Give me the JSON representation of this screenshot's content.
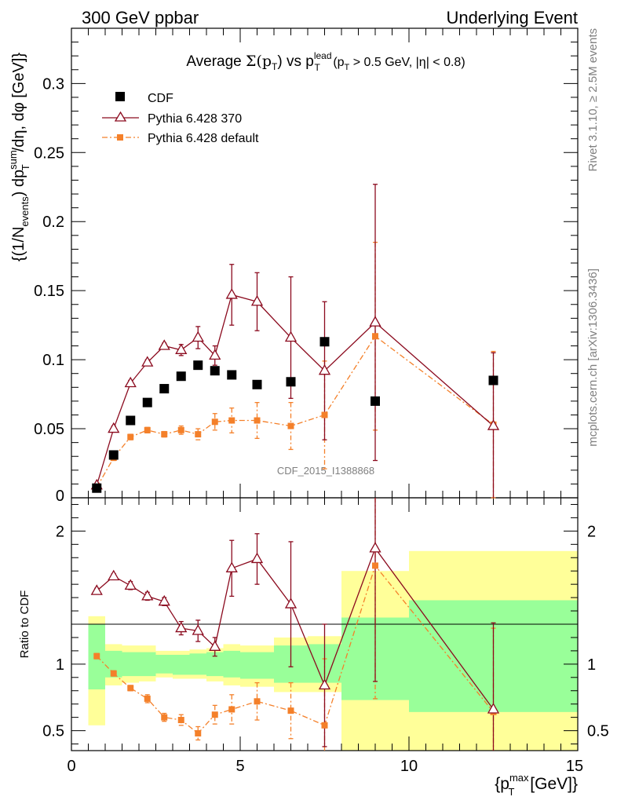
{
  "header": {
    "left": "300 GeV ppbar",
    "right": "Underlying Event"
  },
  "side": {
    "rivet": "Rivet 3.1.10, ≥ 2.5M events",
    "mcplots": "mcplots.cern.ch [arXiv:1306.3436]"
  },
  "watermark": "CDF_2015_I1388868",
  "title": {
    "prefix": "Average ",
    "sigma": "Σ(p",
    "sub1": "T",
    "mid": ") vs p",
    "sup": "lead",
    "sub2": "T",
    "suffix": " (p",
    "sub3": "T",
    "tail": " > 0.5 GeV, |η| < 0.8)"
  },
  "ylabel_main": {
    "a": "{(1/N",
    "sub_events": "events",
    "b": ") dp",
    "sup_sum": "sum",
    "sub_T": "T",
    "c": "/dη, dφ [GeV]}"
  },
  "ylabel_ratio": "Ratio to CDF",
  "xlabel": {
    "a": "{p",
    "sup": "max",
    "sub": "T",
    "b": " [GeV]}"
  },
  "colors": {
    "cdf": "#000000",
    "p370": "#8b0a1e",
    "pdef": "#f4802a",
    "band_yellow": "#ffff99",
    "band_green": "#99ff99"
  },
  "chart_data": {
    "type": "scatter",
    "xlim": [
      0,
      15
    ],
    "ylim": [
      0,
      0.34
    ],
    "ratio_ylim": [
      0.35,
      2.25
    ],
    "x_ticks": [
      "0",
      "5",
      "10",
      "15"
    ],
    "y_ticks": [
      "0",
      "0.05",
      "0.1",
      "0.15",
      "0.2",
      "0.25",
      "0.3"
    ],
    "ratio_ticks": [
      "0.5",
      "1",
      "2"
    ],
    "legend": [
      "CDF",
      "Pythia 6.428 370",
      "Pythia 6.428 default"
    ],
    "bins": [
      [
        0.5,
        1
      ],
      [
        1,
        1.5
      ],
      [
        1.5,
        2
      ],
      [
        2,
        2.5
      ],
      [
        2.5,
        3
      ],
      [
        3,
        3.5
      ],
      [
        3.5,
        4
      ],
      [
        4,
        4.5
      ],
      [
        4.5,
        5
      ],
      [
        5,
        6
      ],
      [
        6,
        7
      ],
      [
        7,
        8
      ],
      [
        8,
        10
      ],
      [
        10,
        15
      ]
    ],
    "x": [
      0.75,
      1.25,
      1.75,
      2.25,
      2.75,
      3.25,
      3.75,
      4.25,
      4.75,
      5.5,
      6.5,
      7.5,
      9.0,
      12.5
    ],
    "cdf": [
      0.007,
      0.031,
      0.056,
      0.069,
      0.079,
      0.088,
      0.096,
      0.092,
      0.089,
      0.082,
      0.084,
      0.113,
      0.07,
      0.085
    ],
    "cdf_band_yellow": [
      [
        0.54,
        1.36
      ],
      [
        0.84,
        1.15
      ],
      [
        0.86,
        1.14
      ],
      [
        0.87,
        1.14
      ],
      [
        0.9,
        1.1
      ],
      [
        0.89,
        1.1
      ],
      [
        0.89,
        1.11
      ],
      [
        0.87,
        1.12
      ],
      [
        0.84,
        1.15
      ],
      [
        0.83,
        1.14
      ],
      [
        0.79,
        1.2
      ],
      [
        0.79,
        1.21
      ],
      [
        0.35,
        1.7
      ],
      [
        0.35,
        1.85
      ]
    ],
    "cdf_band_green": [
      [
        0.81,
        1.3
      ],
      [
        0.9,
        1.1
      ],
      [
        0.91,
        1.09
      ],
      [
        0.91,
        1.09
      ],
      [
        0.93,
        1.07
      ],
      [
        0.92,
        1.07
      ],
      [
        0.92,
        1.08
      ],
      [
        0.91,
        1.09
      ],
      [
        0.9,
        1.1
      ],
      [
        0.89,
        1.09
      ],
      [
        0.86,
        1.14
      ],
      [
        0.86,
        1.15
      ],
      [
        0.73,
        1.35
      ],
      [
        0.64,
        1.48
      ]
    ],
    "series": [
      {
        "name": "Pythia 6.428 370",
        "y": [
          0.009,
          0.05,
          0.083,
          0.098,
          0.11,
          0.107,
          0.116,
          0.103,
          0.147,
          0.142,
          0.116,
          0.092,
          0.127,
          0.052
        ],
        "err": [
          0.001,
          0.002,
          0.002,
          0.002,
          0.002,
          0.004,
          0.008,
          0.007,
          0.022,
          0.021,
          0.044,
          0.05,
          0.1,
          0.053
        ],
        "ratio": [
          1.55,
          1.66,
          1.59,
          1.51,
          1.47,
          1.27,
          1.25,
          1.13,
          1.72,
          1.79,
          1.45,
          0.84,
          1.87,
          0.66
        ],
        "ratio_err": [
          0.02,
          0.02,
          0.03,
          0.03,
          0.03,
          0.05,
          0.08,
          0.07,
          0.21,
          0.19,
          0.47,
          0.46,
          1.0,
          0.65
        ]
      },
      {
        "name": "Pythia 6.428 default",
        "y": [
          0.0075,
          0.029,
          0.044,
          0.049,
          0.046,
          0.049,
          0.046,
          0.055,
          0.056,
          0.056,
          0.052,
          0.06,
          0.117,
          0.053
        ],
        "err": [
          0.001,
          0.002,
          0.002,
          0.002,
          0.002,
          0.003,
          0.004,
          0.006,
          0.009,
          0.013,
          0.017,
          0.039,
          0.068,
          0.053
        ],
        "ratio": [
          1.06,
          0.93,
          0.82,
          0.74,
          0.6,
          0.58,
          0.48,
          0.62,
          0.66,
          0.72,
          0.65,
          0.54,
          1.74,
          0.64
        ],
        "ratio_err": [
          0.02,
          0.02,
          0.02,
          0.03,
          0.03,
          0.04,
          0.05,
          0.07,
          0.11,
          0.14,
          0.21,
          0.5,
          1.0,
          0.63
        ]
      }
    ]
  }
}
